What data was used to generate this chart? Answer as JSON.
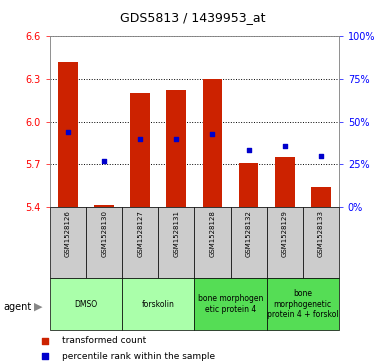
{
  "title": "GDS5813 / 1439953_at",
  "samples": [
    "GSM1528126",
    "GSM1528130",
    "GSM1528127",
    "GSM1528131",
    "GSM1528128",
    "GSM1528132",
    "GSM1528129",
    "GSM1528133"
  ],
  "transformed_count_top": [
    6.42,
    5.41,
    6.2,
    6.22,
    6.3,
    5.71,
    5.75,
    5.54
  ],
  "transformed_count_bottom": [
    5.4,
    5.4,
    5.4,
    5.4,
    5.4,
    5.4,
    5.4,
    5.4
  ],
  "percentile_rank": [
    5.93,
    5.72,
    5.88,
    5.88,
    5.91,
    5.8,
    5.83,
    5.76
  ],
  "ylim": [
    5.4,
    6.6
  ],
  "yticks": [
    5.4,
    5.7,
    6.0,
    6.3,
    6.6
  ],
  "right_yticks_pct": [
    0,
    25,
    50,
    75,
    100
  ],
  "agents": [
    {
      "label": "DMSO",
      "start": 0,
      "end": 1,
      "color": "#aaffaa"
    },
    {
      "label": "forskolin",
      "start": 2,
      "end": 3,
      "color": "#aaffaa"
    },
    {
      "label": "bone morphogen\netic protein 4",
      "start": 4,
      "end": 5,
      "color": "#55dd55"
    },
    {
      "label": "bone\nmorphogenetic\nprotein 4 + forskol",
      "start": 6,
      "end": 7,
      "color": "#55dd55"
    }
  ],
  "bar_color": "#cc2200",
  "dot_color": "#0000cc",
  "background_color": "#cccccc",
  "dmso_color": "#aaffaa",
  "bmp_color": "#66ee66"
}
